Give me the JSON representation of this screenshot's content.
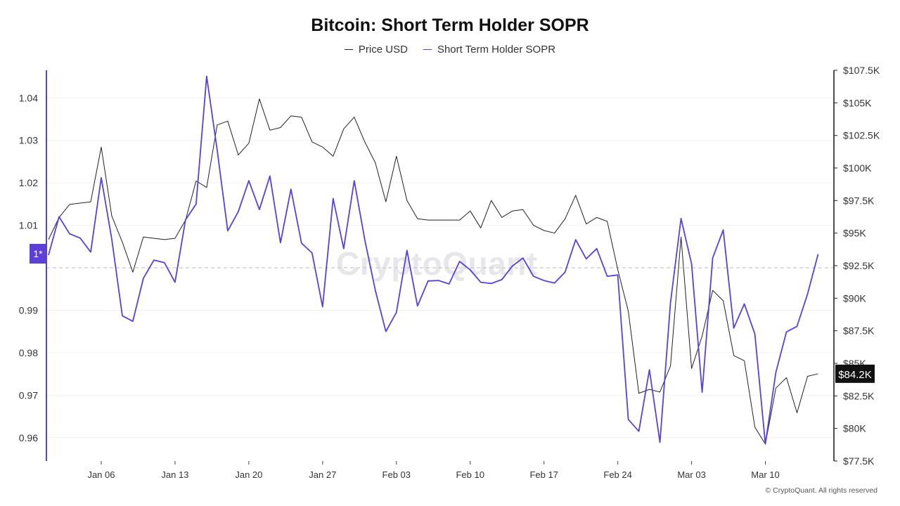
{
  "copyright": "© CryptoQuant. All rights reserved",
  "watermark": "CryptoQuant",
  "chart_data": {
    "type": "line",
    "title": "Bitcoin: Short Term Holder SOPR",
    "legend": {
      "position": "top-center"
    },
    "x_ticks": [
      {
        "label": "Jan 06",
        "day": 5
      },
      {
        "label": "Jan 13",
        "day": 12
      },
      {
        "label": "Jan 20",
        "day": 19
      },
      {
        "label": "Jan 27",
        "day": 26
      },
      {
        "label": "Feb 03",
        "day": 33
      },
      {
        "label": "Feb 10",
        "day": 40
      },
      {
        "label": "Feb 17",
        "day": 47
      },
      {
        "label": "Feb 24",
        "day": 54
      },
      {
        "label": "Mar 03",
        "day": 61
      },
      {
        "label": "Mar 10",
        "day": 68
      }
    ],
    "x_range": [
      -0.2,
      74.5
    ],
    "left_axis": {
      "range": [
        0.9545,
        1.0465
      ],
      "ticks": [
        "0.96",
        "0.97",
        "0.98",
        "0.99",
        "1.01",
        "1.02",
        "1.03",
        "1.04"
      ],
      "tick_values": [
        0.96,
        0.97,
        0.98,
        0.99,
        1.01,
        1.02,
        1.03,
        1.04
      ],
      "reference_line": {
        "value": 1.0,
        "label": "1*",
        "color": "#5b3fd6"
      }
    },
    "right_axis": {
      "range": [
        77500,
        107500
      ],
      "ticks": [
        "$77.5K",
        "$80K",
        "$82.5K",
        "$85K",
        "$87.5K",
        "$90K",
        "$92.5K",
        "$95K",
        "$97.5K",
        "$100K",
        "$102.5K",
        "$105K",
        "$107.5K"
      ],
      "tick_values": [
        77500,
        80000,
        82500,
        85000,
        87500,
        90000,
        92500,
        95000,
        97500,
        100000,
        102500,
        105000,
        107500
      ],
      "current_value_label": "$84.2K",
      "current_value": 84200
    },
    "series": [
      {
        "name": "Price USD",
        "axis": "right",
        "color": "#222222",
        "x": [
          0,
          1,
          2,
          3,
          4,
          5,
          6,
          7,
          8,
          9,
          10,
          11,
          12,
          13,
          14,
          15,
          16,
          17,
          18,
          19,
          20,
          21,
          22,
          23,
          24,
          25,
          26,
          27,
          28,
          29,
          30,
          31,
          32,
          33,
          34,
          35,
          36,
          37,
          38,
          39,
          40,
          41,
          42,
          43,
          44,
          45,
          46,
          47,
          48,
          49,
          50,
          51,
          52,
          53,
          54,
          55,
          56,
          57,
          58,
          59,
          60,
          61,
          62,
          63,
          64,
          65,
          66,
          67,
          68,
          69,
          70,
          71,
          72,
          73
        ],
        "values": [
          94500,
          96200,
          97200,
          97300,
          97400,
          101600,
          96300,
          94300,
          92000,
          94700,
          94600,
          94500,
          94600,
          96000,
          99000,
          98500,
          103300,
          103600,
          101000,
          101900,
          105300,
          102900,
          103100,
          104000,
          103900,
          102000,
          101600,
          100900,
          103000,
          103900,
          102000,
          100400,
          97400,
          100900,
          97500,
          96100,
          96000,
          96000,
          96000,
          96000,
          96700,
          95400,
          97500,
          96200,
          96700,
          96800,
          95600,
          95200,
          95000,
          96100,
          97900,
          95700,
          96200,
          95900,
          92200,
          89000,
          82700,
          83000,
          82800,
          84800,
          94700,
          84600,
          87100,
          90600,
          89800,
          85600,
          85200,
          80100,
          78800,
          83100,
          83900,
          81200,
          84000,
          84200
        ]
      },
      {
        "name": "Short Term Holder SOPR",
        "axis": "left",
        "color": "#5b3fd6",
        "x": [
          0,
          1,
          2,
          3,
          4,
          5,
          6,
          7,
          8,
          9,
          10,
          11,
          12,
          13,
          14,
          15,
          16,
          17,
          18,
          19,
          20,
          21,
          22,
          23,
          24,
          25,
          26,
          27,
          28,
          29,
          30,
          31,
          32,
          33,
          34,
          35,
          36,
          37,
          38,
          39,
          40,
          41,
          42,
          43,
          44,
          45,
          46,
          47,
          48,
          49,
          50,
          51,
          52,
          53,
          54,
          55,
          56,
          57,
          58,
          59,
          60,
          61,
          62,
          63,
          64,
          65,
          66,
          67,
          68,
          69,
          70,
          71,
          72,
          73
        ],
        "values": [
          1.003,
          1.012,
          1.008,
          1.007,
          1.0037,
          1.0212,
          1.0067,
          0.9887,
          0.9874,
          0.9975,
          1.0018,
          1.0012,
          0.9966,
          1.0113,
          1.015,
          1.0451,
          1.0277,
          1.0087,
          1.0132,
          1.0205,
          1.0137,
          1.0216,
          1.0059,
          1.0185,
          1.0058,
          1.0035,
          0.9908,
          1.0163,
          1.0045,
          1.0205,
          1.0066,
          0.9947,
          0.985,
          0.9895,
          1.0041,
          0.991,
          0.9969,
          0.997,
          0.9962,
          1.0015,
          0.9995,
          0.9966,
          0.9963,
          0.9972,
          1.0004,
          1.0023,
          0.998,
          0.997,
          0.9964,
          0.999,
          1.0066,
          1.0021,
          1.0045,
          0.998,
          0.9983,
          0.9643,
          0.9615,
          0.976,
          0.9589,
          0.9918,
          1.0116,
          1.0009,
          0.9707,
          1.0023,
          1.0089,
          0.9858,
          0.9915,
          0.9844,
          0.9585,
          0.9754,
          0.9849,
          0.9862,
          0.9938,
          1.0032
        ]
      }
    ]
  }
}
